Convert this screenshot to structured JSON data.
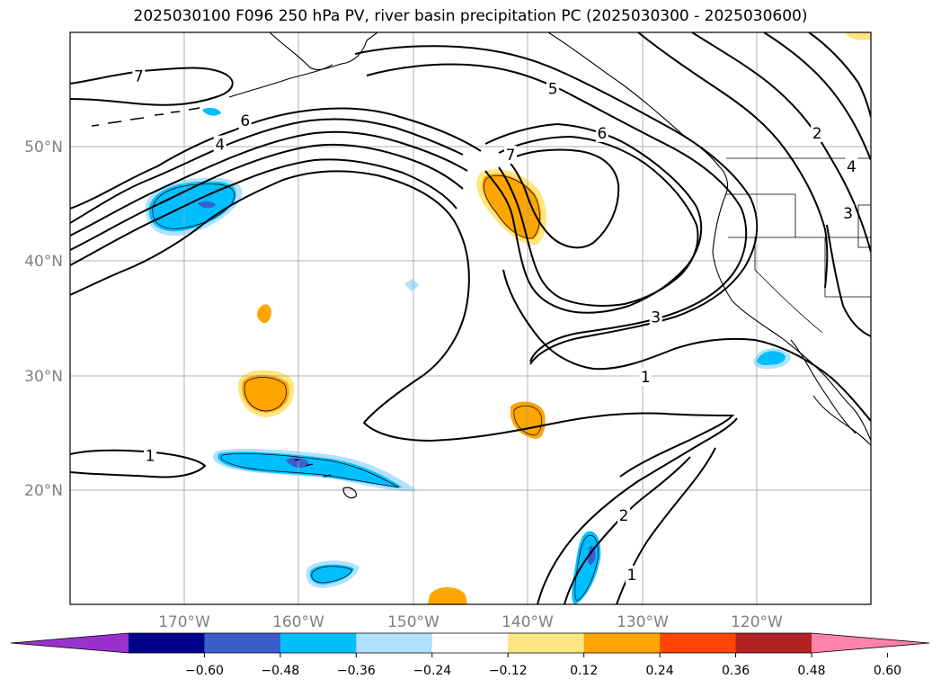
{
  "title": "2025030100 F096 250 hPa PV, river basin precipitation PC (2025030300 - 2025030600)",
  "map": {
    "lon_range": [
      -180,
      -110
    ],
    "lat_range": [
      10,
      60
    ],
    "lon_ticks": [
      {
        "value": -170,
        "label": "170°W"
      },
      {
        "value": -160,
        "label": "160°W"
      },
      {
        "value": -150,
        "label": "150°W"
      },
      {
        "value": -140,
        "label": "140°W"
      },
      {
        "value": -130,
        "label": "130°W"
      },
      {
        "value": -120,
        "label": "120°W"
      }
    ],
    "lat_ticks": [
      {
        "value": 20,
        "label": "20°N"
      },
      {
        "value": 30,
        "label": "30°N"
      },
      {
        "value": 40,
        "label": "40°N"
      },
      {
        "value": 50,
        "label": "50°N"
      }
    ],
    "gridlines": true,
    "contour_labels": [
      {
        "text": "7",
        "lon": -174,
        "lat": 56.2
      },
      {
        "text": "6",
        "lon": -164.7,
        "lat": 52.3
      },
      {
        "text": "4",
        "lon": -166.9,
        "lat": 50.2
      },
      {
        "text": "5",
        "lon": -137.8,
        "lat": 55.1
      },
      {
        "text": "6",
        "lon": -133.5,
        "lat": 51.2
      },
      {
        "text": "7",
        "lon": -141.5,
        "lat": 49.3
      },
      {
        "text": "2",
        "lon": -114.7,
        "lat": 51.2
      },
      {
        "text": "4",
        "lon": -111.7,
        "lat": 48.3
      },
      {
        "text": "3",
        "lon": -112.0,
        "lat": 44.2
      },
      {
        "text": "3",
        "lon": -128.8,
        "lat": 35.1
      },
      {
        "text": "1",
        "lon": -129.7,
        "lat": 29.9
      },
      {
        "text": "1",
        "lon": -173.0,
        "lat": 23.0
      },
      {
        "text": "2",
        "lon": -131.6,
        "lat": 17.8
      },
      {
        "text": "1",
        "lon": -130.9,
        "lat": 12.6
      }
    ],
    "colors": {
      "orange": "#ffa500",
      "light_yellow": "#ffe680",
      "deep_sky_blue": "#00bfff",
      "light_blue": "#b0e2ff",
      "royal_blue": "#3a5fcd",
      "contour": "#000000"
    }
  },
  "colorbar": {
    "colors": [
      "#9932cc",
      "#00008b",
      "#3a5fcd",
      "#00bfff",
      "#b0e2ff",
      "#ffffff",
      "#ffe680",
      "#ffa500",
      "#ff4500",
      "#b22222",
      "#ff82ab"
    ],
    "ticks": [
      "−0.60",
      "−0.48",
      "−0.36",
      "−0.24",
      "−0.12",
      "0.12",
      "0.24",
      "0.36",
      "0.48",
      "0.60"
    ]
  }
}
